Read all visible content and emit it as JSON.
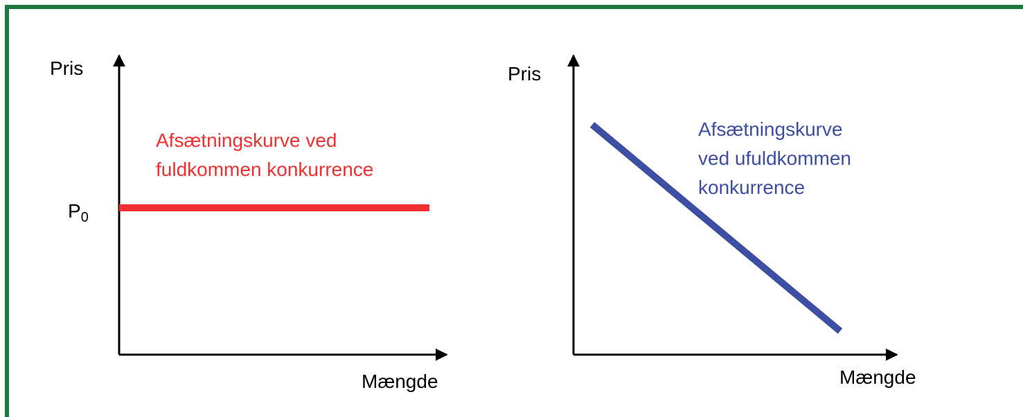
{
  "panels": [
    {
      "y_label": "Pris",
      "x_label": "Mængde",
      "price_label": {
        "main": "P",
        "sub": "0"
      },
      "curve_label": [
        "Afsætningskurve ved",
        "fuldkommen konkurrence"
      ]
    },
    {
      "y_label": "Pris",
      "x_label": "Mængde",
      "curve_label": [
        "Afsætningskurve",
        "ved ufuldkommen",
        "konkurrence"
      ]
    }
  ]
}
